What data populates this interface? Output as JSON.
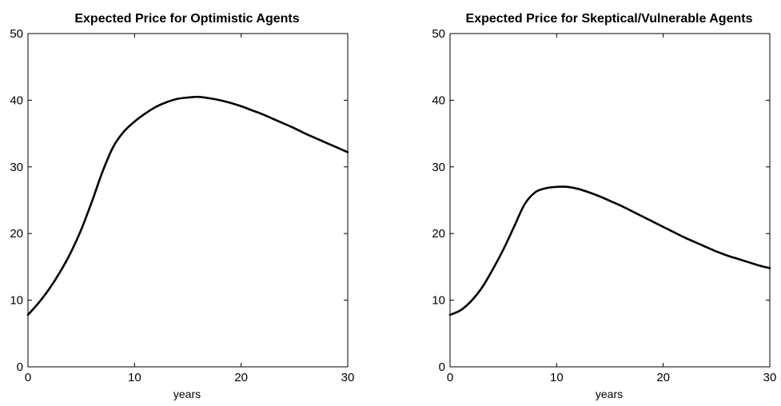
{
  "chart_data": [
    {
      "type": "line",
      "title": "Expected Price for Optimistic Agents",
      "xlabel": "years",
      "ylabel": "",
      "xlim": [
        0,
        30
      ],
      "ylim": [
        0,
        50
      ],
      "xticks": [
        0,
        10,
        20,
        30
      ],
      "yticks": [
        0,
        10,
        20,
        30,
        40,
        50
      ],
      "grid": false,
      "series": [
        {
          "x": [
            0,
            1,
            2,
            3,
            4,
            5,
            6,
            7,
            8,
            9,
            10,
            11,
            12,
            13,
            14,
            15,
            16,
            17,
            18,
            19,
            20,
            21,
            22,
            23,
            24,
            25,
            26,
            27,
            28,
            29,
            30
          ],
          "values": [
            7.8,
            9.6,
            11.7,
            14.2,
            17.1,
            20.6,
            24.8,
            29.3,
            33.0,
            35.3,
            36.8,
            38.0,
            39.0,
            39.7,
            40.2,
            40.4,
            40.5,
            40.3,
            40.0,
            39.6,
            39.1,
            38.5,
            37.9,
            37.2,
            36.5,
            35.8,
            35.0,
            34.3,
            33.6,
            32.9,
            32.2
          ]
        }
      ]
    },
    {
      "type": "line",
      "title": "Expected Price for Skeptical/Vulnerable Agents",
      "xlabel": "years",
      "ylabel": "",
      "xlim": [
        0,
        30
      ],
      "ylim": [
        0,
        50
      ],
      "xticks": [
        0,
        10,
        20,
        30
      ],
      "yticks": [
        0,
        10,
        20,
        30,
        40,
        50
      ],
      "grid": false,
      "series": [
        {
          "x": [
            0,
            1,
            2,
            3,
            4,
            5,
            6,
            7,
            8,
            9,
            10,
            11,
            12,
            13,
            14,
            15,
            16,
            17,
            18,
            19,
            20,
            21,
            22,
            23,
            24,
            25,
            26,
            27,
            28,
            29,
            30
          ],
          "values": [
            7.8,
            8.5,
            9.9,
            11.9,
            14.6,
            17.6,
            21.0,
            24.4,
            26.2,
            26.8,
            27.0,
            27.0,
            26.7,
            26.2,
            25.6,
            24.9,
            24.2,
            23.4,
            22.6,
            21.8,
            21.0,
            20.2,
            19.4,
            18.7,
            18.0,
            17.3,
            16.7,
            16.2,
            15.7,
            15.2,
            14.8
          ]
        }
      ]
    }
  ]
}
